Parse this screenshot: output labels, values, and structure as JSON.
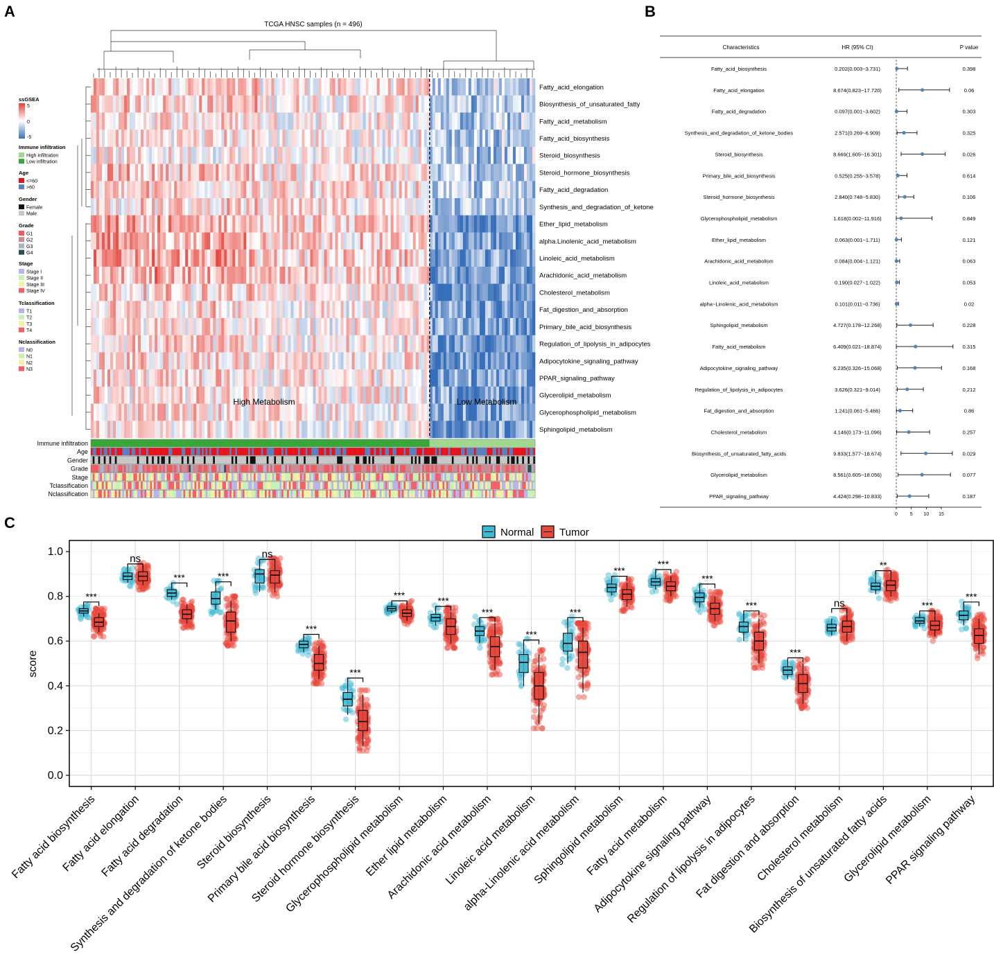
{
  "panel_labels": [
    "A",
    "B",
    "C"
  ],
  "chart_data": [
    {
      "type": "heatmap",
      "panel": "A",
      "title": "TCGA HNSC samples (n = 496)",
      "rows": [
        "Fatty_acid_elongation",
        "Biosynthesis_of_unsaturated_fatty",
        "Fatty_acid_metabolism",
        "Fatty_acid_biosynthesis",
        "Steroid_biosynthesis",
        "Steroid_hormone_biosynthesis",
        "Fatty_acid_degradation",
        "Synthesis_and_degradation_of_ketone",
        "Ether_lipid_metabolism",
        "alpha.Linolenic_acid_metabolism",
        "Linoleic_acid_metabolism",
        "Arachidonic_acid_metabolism",
        "Cholesterol_metabolism",
        "Fat_digestion_and_absorption",
        "Primary_bile_acid_biosynthesis",
        "Regulation_of_lipolysis_in_adipocytes",
        "Adipocytokine_signaling_pathway",
        "PPAR_signaling_pathway",
        "Glycerolipid_metabolism",
        "Glycerophospholipid_metabolism",
        "Sphingolipid_metabolism"
      ],
      "groups": [
        "High Metabolism",
        "Low Metabolism"
      ],
      "group_split_fraction": 0.76,
      "annotation_tracks": [
        "Immune infiltration",
        "Age",
        "Gender",
        "Grade",
        "Stage",
        "Tclassification",
        "Nclassification"
      ],
      "legend": {
        "ssgsea": {
          "title": "ssGSEA",
          "ticks": [
            "5",
            "0",
            "-5"
          ]
        },
        "sections": [
          {
            "title": "Immune infiltration",
            "items": [
              {
                "label": "High infiltration",
                "color": "#9fd88e"
              },
              {
                "label": "Low infiltration",
                "color": "#3aa63a"
              }
            ]
          },
          {
            "title": "Age",
            "items": [
              {
                "label": "<=60",
                "color": "#e8121a"
              },
              {
                "label": ">60",
                "color": "#5a7fbe"
              }
            ]
          },
          {
            "title": "Gender",
            "items": [
              {
                "label": "Female",
                "color": "#111111"
              },
              {
                "label": "Male",
                "color": "#c7c7c7"
              }
            ]
          },
          {
            "title": "Grade",
            "items": [
              {
                "label": "G1",
                "color": "#ef5a5f"
              },
              {
                "label": "G2",
                "color": "#c98a93"
              },
              {
                "label": "G3",
                "color": "#a9b3c9"
              },
              {
                "label": "G4",
                "color": "#2f4f4f"
              }
            ]
          },
          {
            "title": "Stage",
            "items": [
              {
                "label": "Stage I",
                "color": "#b9b4ee"
              },
              {
                "label": "Stage II",
                "color": "#c8f2b5"
              },
              {
                "label": "Stage III",
                "color": "#f6f0a4"
              },
              {
                "label": "Stage IV",
                "color": "#f4606a"
              }
            ]
          },
          {
            "title": "Tclassification",
            "items": [
              {
                "label": "T1",
                "color": "#b9b4ee"
              },
              {
                "label": "T2",
                "color": "#c8f2b5"
              },
              {
                "label": "T3",
                "color": "#f6f0a4"
              },
              {
                "label": "T4",
                "color": "#f4606a"
              }
            ]
          },
          {
            "title": "Nclassification",
            "items": [
              {
                "label": "N0",
                "color": "#b9b4ee"
              },
              {
                "label": "N1",
                "color": "#c8f2b5"
              },
              {
                "label": "N2",
                "color": "#f6f0a4"
              },
              {
                "label": "N3",
                "color": "#f4606a"
              }
            ]
          }
        ]
      }
    },
    {
      "type": "forest",
      "panel": "B",
      "columns": [
        "Characteristics",
        "HR (95% CI)",
        "P value"
      ],
      "xlim": [
        0,
        15
      ],
      "xticks": [
        0,
        5,
        10,
        15
      ],
      "rows": [
        {
          "name": "Fatty_acid_biosynthesis",
          "label": "0.202(0.003~3.731)",
          "hr": 0.202,
          "lo": 0.003,
          "hi": 3.731,
          "p": "0.398"
        },
        {
          "name": "Fatty_acid_elongation",
          "label": "8.674(0.823~17.720)",
          "hr": 8.674,
          "lo": 0.823,
          "hi": 17.72,
          "p": "0.06"
        },
        {
          "name": "Fatty_acid_degradation",
          "label": "0.097(0.001~3.602)",
          "hr": 0.097,
          "lo": 0.001,
          "hi": 3.602,
          "p": "0.303"
        },
        {
          "name": "Synthesis_and_degradation_of_ketone_bodies",
          "label": "2.571(0.269~6.909)",
          "hr": 2.571,
          "lo": 0.269,
          "hi": 6.909,
          "p": "0.325"
        },
        {
          "name": "Steroid_biosynthesis",
          "label": "8.669(1.605~16.301)",
          "hr": 8.669,
          "lo": 1.605,
          "hi": 16.301,
          "p": "0.026"
        },
        {
          "name": "Primary_bile_acid_biosynthesis",
          "label": "0.525(0.255~3.578)",
          "hr": 0.525,
          "lo": 0.255,
          "hi": 3.578,
          "p": "0.614"
        },
        {
          "name": "Steroid_hormone_biosynthesis",
          "label": "2.840(0.748~5.830)",
          "hr": 2.84,
          "lo": 0.748,
          "hi": 5.83,
          "p": "0.106"
        },
        {
          "name": "Glycerophospholipid_metabolism",
          "label": "1.618(0.002~11.916)",
          "hr": 1.618,
          "lo": 0.002,
          "hi": 11.916,
          "p": "0.849"
        },
        {
          "name": "Ether_lipid_metabolism",
          "label": "0.063(0.001~1.711)",
          "hr": 0.063,
          "lo": 0.001,
          "hi": 1.711,
          "p": "0.121"
        },
        {
          "name": "Arachidonic_acid_metabolism",
          "label": "0.084(0.004~1.121)",
          "hr": 0.084,
          "lo": 0.004,
          "hi": 1.121,
          "p": "0.063"
        },
        {
          "name": "Linoleic_acid_metabolism",
          "label": "0.190(0.027~1.022)",
          "hr": 0.19,
          "lo": 0.027,
          "hi": 1.022,
          "p": "0.053"
        },
        {
          "name": "alpha~Linolenic_acid_metabolism",
          "label": "0.101(0.011~0.736)",
          "hr": 0.101,
          "lo": 0.011,
          "hi": 0.736,
          "p": "0.02"
        },
        {
          "name": "Sphingolipid_metabolism",
          "label": "4.727(0.178~12.268)",
          "hr": 4.727,
          "lo": 0.178,
          "hi": 12.268,
          "p": "0.228"
        },
        {
          "name": "Fatty_acid_metabolism",
          "label": "6.409(0.021~18.874)",
          "hr": 6.409,
          "lo": 0.021,
          "hi": 18.874,
          "p": "0.315"
        },
        {
          "name": "Adipocytokine_signaling_pathway",
          "label": "6.235(0.326~15.068)",
          "hr": 6.235,
          "lo": 0.326,
          "hi": 15.068,
          "p": "0.168"
        },
        {
          "name": "Regulation_of_lipolysis_in_adipocytes",
          "label": "3.626(0.321~9.014)",
          "hr": 3.626,
          "lo": 0.321,
          "hi": 9.014,
          "p": "0.212"
        },
        {
          "name": "Fat_digestion_and_absorption",
          "label": "1.241(0.061~5.466)",
          "hr": 1.241,
          "lo": 0.061,
          "hi": 5.466,
          "p": "0.86"
        },
        {
          "name": "Cholesterol_metabolism",
          "label": "4.146(0.173~11.096)",
          "hr": 4.146,
          "lo": 0.173,
          "hi": 11.096,
          "p": "0.257"
        },
        {
          "name": "Biosynthesis_of_unsaturated_fatty_acids",
          "label": "9.833(1.577~18.674)",
          "hr": 9.833,
          "lo": 1.577,
          "hi": 18.674,
          "p": "0.029"
        },
        {
          "name": "Glycerolipid_metabolism",
          "label": "8.561(0.605~18.056)",
          "hr": 8.561,
          "lo": 0.605,
          "hi": 18.056,
          "p": "0.077"
        },
        {
          "name": "PPAR_signaling_pathway",
          "label": "4.424(0.298~10.833)",
          "hr": 4.424,
          "lo": 0.298,
          "hi": 10.833,
          "p": "0.187"
        }
      ]
    },
    {
      "type": "box",
      "panel": "C",
      "ylabel": "score",
      "ylim": [
        -0.05,
        1.05
      ],
      "yticks": [
        "0.0",
        "0.2",
        "0.4",
        "0.6",
        "0.8",
        "1.0"
      ],
      "legend": [
        {
          "name": "Normal",
          "color": "#3fb8d3"
        },
        {
          "name": "Tumor",
          "color": "#e8473b"
        }
      ],
      "categories": [
        {
          "name": "Fatty acid biosynthesis",
          "sig": "***",
          "normal": [
            0.71,
            0.725,
            0.735,
            0.745,
            0.76
          ],
          "tumor": [
            0.64,
            0.665,
            0.685,
            0.705,
            0.725
          ]
        },
        {
          "name": "Fatty acid elongation",
          "sig": "ns",
          "normal": [
            0.86,
            0.875,
            0.89,
            0.905,
            0.925
          ],
          "tumor": [
            0.85,
            0.87,
            0.89,
            0.91,
            0.93
          ]
        },
        {
          "name": "Fatty acid degradation",
          "sig": "***",
          "normal": [
            0.785,
            0.8,
            0.815,
            0.83,
            0.845
          ],
          "tumor": [
            0.68,
            0.7,
            0.72,
            0.74,
            0.765
          ]
        },
        {
          "name": "Synthesis and degradation of ketone bodies",
          "sig": "***",
          "normal": [
            0.74,
            0.765,
            0.79,
            0.82,
            0.85
          ],
          "tumor": [
            0.6,
            0.64,
            0.69,
            0.73,
            0.78
          ]
        },
        {
          "name": "Steroid biosynthesis",
          "sig": "ns",
          "normal": [
            0.82,
            0.86,
            0.9,
            0.92,
            0.95
          ],
          "tumor": [
            0.82,
            0.86,
            0.895,
            0.915,
            0.95
          ]
        },
        {
          "name": "Primary bile acid biosynthesis",
          "sig": "***",
          "normal": [
            0.55,
            0.57,
            0.585,
            0.6,
            0.615
          ],
          "tumor": [
            0.43,
            0.47,
            0.5,
            0.54,
            0.58
          ]
        },
        {
          "name": "Steroid hormone biosynthesis",
          "sig": "***",
          "normal": [
            0.27,
            0.31,
            0.34,
            0.37,
            0.42
          ],
          "tumor": [
            0.13,
            0.2,
            0.24,
            0.29,
            0.36
          ]
        },
        {
          "name": "Glycerophospholipid metabolism",
          "sig": "***",
          "normal": [
            0.725,
            0.735,
            0.745,
            0.755,
            0.765
          ],
          "tumor": [
            0.69,
            0.71,
            0.725,
            0.74,
            0.76
          ]
        },
        {
          "name": "Ether lipid metabolism",
          "sig": "***",
          "normal": [
            0.67,
            0.69,
            0.705,
            0.72,
            0.74
          ],
          "tumor": [
            0.59,
            0.63,
            0.665,
            0.7,
            0.73
          ]
        },
        {
          "name": "Arachidonic acid metabolism",
          "sig": "***",
          "normal": [
            0.59,
            0.625,
            0.645,
            0.665,
            0.69
          ],
          "tumor": [
            0.47,
            0.53,
            0.575,
            0.62,
            0.68
          ]
        },
        {
          "name": "Linoleic acid metabolism",
          "sig": "***",
          "normal": [
            0.4,
            0.46,
            0.505,
            0.54,
            0.59
          ],
          "tumor": [
            0.23,
            0.34,
            0.4,
            0.46,
            0.54
          ]
        },
        {
          "name": "alpha-Linolenic acid metabolism",
          "sig": "***",
          "normal": [
            0.5,
            0.555,
            0.59,
            0.635,
            0.69
          ],
          "tumor": [
            0.37,
            0.48,
            0.55,
            0.6,
            0.66
          ]
        },
        {
          "name": "Sphingolipid metabolism",
          "sig": "***",
          "normal": [
            0.805,
            0.82,
            0.84,
            0.855,
            0.875
          ],
          "tumor": [
            0.755,
            0.785,
            0.81,
            0.83,
            0.86
          ]
        },
        {
          "name": "Fatty acid metabolism",
          "sig": "***",
          "normal": [
            0.83,
            0.85,
            0.865,
            0.88,
            0.905
          ],
          "tumor": [
            0.8,
            0.825,
            0.845,
            0.865,
            0.89
          ]
        },
        {
          "name": "Adipocytokine signaling pathway",
          "sig": "***",
          "normal": [
            0.75,
            0.775,
            0.795,
            0.815,
            0.84
          ],
          "tumor": [
            0.69,
            0.72,
            0.745,
            0.77,
            0.8
          ]
        },
        {
          "name": "Regulation of lipolysis in adipocytes",
          "sig": "***",
          "normal": [
            0.6,
            0.64,
            0.665,
            0.685,
            0.72
          ],
          "tumor": [
            0.5,
            0.56,
            0.6,
            0.64,
            0.7
          ]
        },
        {
          "name": "Fat digestion and absorption",
          "sig": "***",
          "normal": [
            0.43,
            0.45,
            0.47,
            0.485,
            0.51
          ],
          "tumor": [
            0.32,
            0.37,
            0.41,
            0.45,
            0.5
          ]
        },
        {
          "name": "Cholesterol metabolism",
          "sig": "ns",
          "normal": [
            0.625,
            0.645,
            0.66,
            0.675,
            0.7
          ],
          "tumor": [
            0.6,
            0.64,
            0.665,
            0.69,
            0.73
          ]
        },
        {
          "name": "Biosynthesis of unsaturated fatty acids",
          "sig": "**",
          "normal": [
            0.81,
            0.83,
            0.845,
            0.86,
            0.895
          ],
          "tumor": [
            0.8,
            0.825,
            0.85,
            0.87,
            0.9
          ]
        },
        {
          "name": "Glycerolipid metabolism",
          "sig": "***",
          "normal": [
            0.665,
            0.68,
            0.69,
            0.705,
            0.72
          ],
          "tumor": [
            0.62,
            0.65,
            0.67,
            0.69,
            0.715
          ]
        },
        {
          "name": "PPAR signaling pathway",
          "sig": "***",
          "normal": [
            0.67,
            0.695,
            0.715,
            0.735,
            0.76
          ],
          "tumor": [
            0.54,
            0.59,
            0.625,
            0.655,
            0.7
          ]
        }
      ]
    }
  ]
}
